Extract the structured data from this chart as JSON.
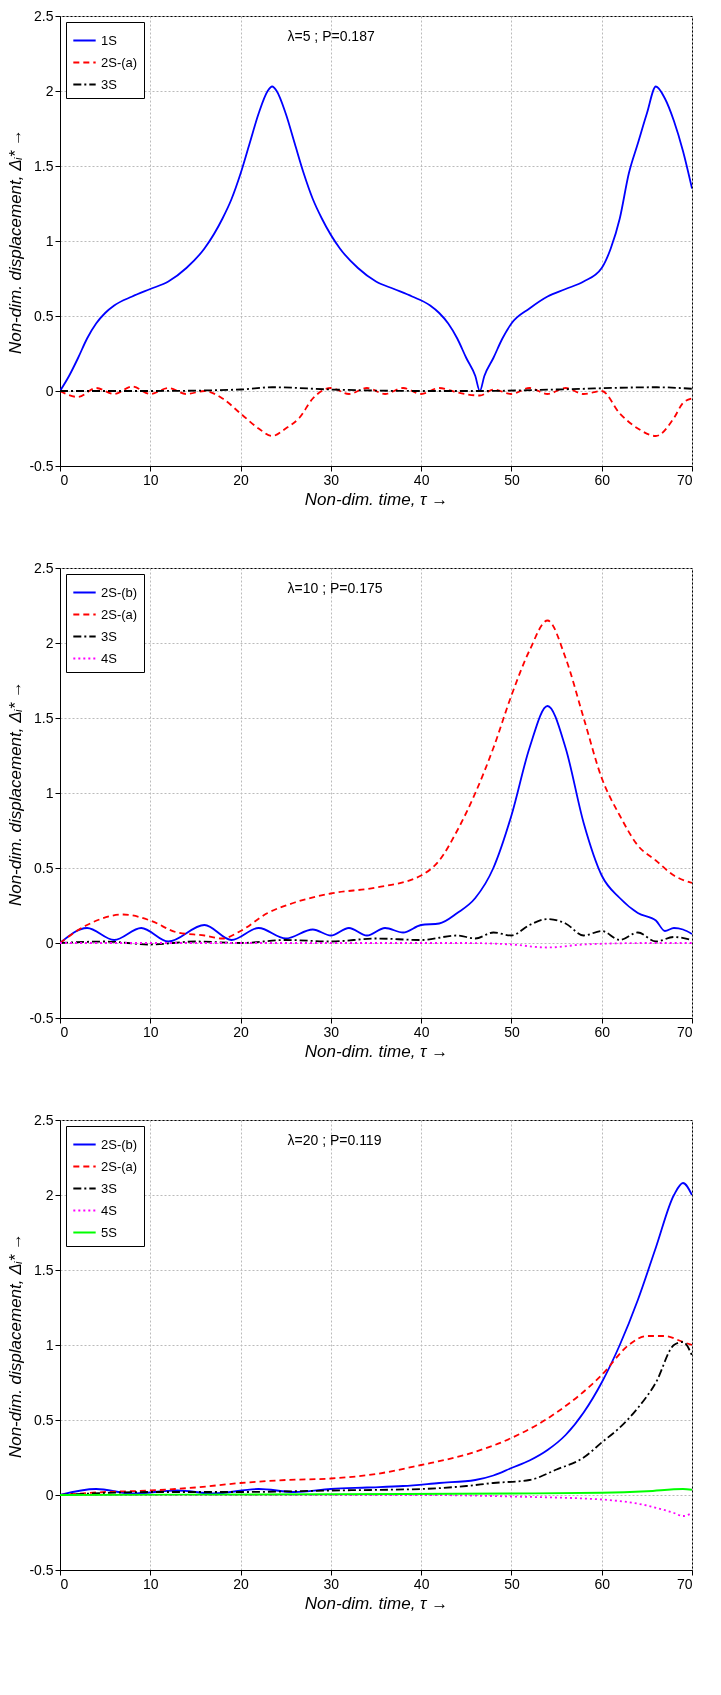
{
  "chart_data": [
    {
      "type": "line",
      "xlabel": "Non-dim. time, τ →",
      "ylabel": "Non-dim. displacement, Δᵢ* →",
      "annotations": [
        "λ=5 ;  P=0.187"
      ],
      "xlim": [
        0,
        70
      ],
      "xticks": [
        0,
        10,
        20,
        30,
        40,
        50,
        60,
        70
      ],
      "ylim": [
        -0.5,
        2.5
      ],
      "yticks": [
        -0.5,
        0,
        0.5,
        1,
        1.5,
        2,
        2.5
      ],
      "grid": true,
      "legend": "top left",
      "series": [
        {
          "name": "1S",
          "color": "#0000ff",
          "line_style": "solid",
          "x": [
            0,
            1,
            2,
            3,
            4,
            5,
            6,
            8,
            10,
            12,
            14,
            16,
            18,
            19,
            20,
            21,
            22,
            23,
            23.5,
            24,
            25,
            26,
            27,
            28,
            29,
            31,
            33,
            35,
            37,
            39,
            41,
            42,
            43,
            44,
            45,
            46,
            46.5,
            47,
            48,
            49,
            50,
            52,
            54,
            56,
            58,
            60,
            61,
            62,
            63,
            64,
            65,
            66,
            67,
            68,
            69,
            70
          ],
          "values": [
            0,
            0.1,
            0.22,
            0.35,
            0.45,
            0.52,
            0.57,
            0.63,
            0.68,
            0.73,
            0.82,
            0.95,
            1.15,
            1.28,
            1.45,
            1.65,
            1.85,
            2.0,
            2.03,
            2.0,
            1.85,
            1.65,
            1.45,
            1.28,
            1.15,
            0.95,
            0.82,
            0.73,
            0.68,
            0.63,
            0.57,
            0.52,
            0.45,
            0.35,
            0.22,
            0.1,
            0,
            0.1,
            0.22,
            0.35,
            0.45,
            0.55,
            0.63,
            0.68,
            0.73,
            0.82,
            0.95,
            1.15,
            1.45,
            1.65,
            1.85,
            2.03,
            1.95,
            1.8,
            1.6,
            1.35
          ]
        },
        {
          "name": "2S-(a)",
          "color": "#ff0000",
          "line_style": "dashed",
          "x": [
            0,
            2,
            4,
            6,
            8,
            10,
            12,
            14,
            16,
            18,
            20,
            22,
            23.5,
            25,
            26.5,
            28,
            30,
            32,
            34,
            36,
            38,
            40,
            42,
            44,
            46.5,
            48,
            50,
            52,
            54,
            56,
            58,
            60,
            62,
            64,
            66,
            68,
            69,
            70
          ],
          "values": [
            0,
            -0.04,
            0.02,
            -0.02,
            0.03,
            -0.02,
            0.02,
            -0.02,
            0,
            -0.05,
            -0.15,
            -0.25,
            -0.3,
            -0.25,
            -0.18,
            -0.05,
            0.02,
            -0.02,
            0.02,
            -0.02,
            0.02,
            -0.02,
            0.02,
            -0.01,
            -0.03,
            0.01,
            -0.02,
            0.02,
            -0.02,
            0.02,
            -0.02,
            0,
            -0.15,
            -0.25,
            -0.3,
            -0.18,
            -0.08,
            -0.05
          ]
        },
        {
          "name": "3S",
          "color": "#000000",
          "line_style": "dashdot",
          "x": [
            0,
            10,
            20,
            23.5,
            30,
            40,
            46.5,
            55,
            66,
            70
          ],
          "values": [
            0,
            0,
            0.01,
            0.025,
            0.01,
            0,
            0,
            0.01,
            0.025,
            0.015
          ]
        }
      ]
    },
    {
      "type": "line",
      "xlabel": "Non-dim. time, τ →",
      "ylabel": "Non-dim. displacement, Δᵢ* →",
      "annotations": [
        "λ=10 ;  P=0.175"
      ],
      "xlim": [
        0,
        70
      ],
      "xticks": [
        0,
        10,
        20,
        30,
        40,
        50,
        60,
        70
      ],
      "ylim": [
        -0.5,
        2.5
      ],
      "yticks": [
        -0.5,
        0,
        0.5,
        1,
        1.5,
        2,
        2.5
      ],
      "grid": true,
      "legend": "top left",
      "series": [
        {
          "name": "2S-(b)",
          "color": "#0000ff",
          "line_style": "solid",
          "x": [
            0,
            3,
            6,
            9,
            12,
            16,
            19,
            22,
            25,
            28,
            30,
            32,
            34,
            36,
            38,
            40,
            42,
            44,
            46,
            48,
            50,
            52,
            54,
            56,
            58,
            60,
            62,
            64,
            66,
            67,
            68,
            69,
            70
          ],
          "values": [
            0,
            0.1,
            0.02,
            0.1,
            0.01,
            0.12,
            0.02,
            0.1,
            0.03,
            0.09,
            0.05,
            0.1,
            0.05,
            0.1,
            0.07,
            0.12,
            0.13,
            0.2,
            0.3,
            0.5,
            0.85,
            1.3,
            1.58,
            1.3,
            0.8,
            0.45,
            0.3,
            0.2,
            0.15,
            0.08,
            0.1,
            0.09,
            0.06
          ]
        },
        {
          "name": "2S-(a)",
          "color": "#ff0000",
          "line_style": "dashed",
          "x": [
            0,
            3,
            7,
            10,
            13,
            16,
            18,
            20,
            23,
            26,
            30,
            35,
            40,
            42,
            44,
            46,
            48,
            50,
            52,
            54,
            56,
            58,
            60,
            62,
            64,
            66,
            68,
            70
          ],
          "values": [
            0,
            0.12,
            0.19,
            0.15,
            0.07,
            0.05,
            0.03,
            0.08,
            0.2,
            0.27,
            0.33,
            0.37,
            0.45,
            0.55,
            0.75,
            1.0,
            1.3,
            1.65,
            1.95,
            2.15,
            1.9,
            1.5,
            1.1,
            0.85,
            0.65,
            0.55,
            0.45,
            0.4
          ]
        },
        {
          "name": "3S",
          "color": "#000000",
          "line_style": "dashdot",
          "x": [
            0,
            5,
            10,
            15,
            20,
            25,
            30,
            35,
            40,
            44,
            46,
            48,
            50,
            52,
            54,
            56,
            58,
            60,
            62,
            64,
            66,
            68,
            70
          ],
          "values": [
            0,
            0.01,
            -0.01,
            0.01,
            0.0,
            0.02,
            0.01,
            0.03,
            0.02,
            0.05,
            0.03,
            0.07,
            0.05,
            0.12,
            0.16,
            0.13,
            0.05,
            0.08,
            0.02,
            0.07,
            0.01,
            0.04,
            0.02
          ]
        },
        {
          "name": "4S",
          "color": "#ff00ff",
          "line_style": "dotted",
          "x": [
            0,
            45,
            50,
            54,
            58,
            65,
            70
          ],
          "values": [
            0,
            0,
            -0.01,
            -0.03,
            -0.01,
            0,
            0
          ]
        }
      ]
    },
    {
      "type": "line",
      "xlabel": "Non-dim. time, τ →",
      "ylabel": "Non-dim. displacement, Δᵢ* →",
      "annotations": [
        "λ=20 ;  P=0.119"
      ],
      "xlim": [
        0,
        70
      ],
      "xticks": [
        0,
        10,
        20,
        30,
        40,
        50,
        60,
        70
      ],
      "ylim": [
        -0.5,
        2.5
      ],
      "yticks": [
        -0.5,
        0,
        0.5,
        1,
        1.5,
        2,
        2.5
      ],
      "grid": true,
      "legend": "top left",
      "series": [
        {
          "name": "2S-(b)",
          "color": "#0000ff",
          "line_style": "solid",
          "x": [
            0,
            4,
            8,
            13,
            17,
            22,
            26,
            30,
            34,
            38,
            42,
            46,
            48,
            50,
            52,
            54,
            56,
            58,
            60,
            62,
            64,
            66,
            68,
            69,
            70
          ],
          "values": [
            0,
            0.04,
            0.01,
            0.03,
            0.01,
            0.04,
            0.02,
            0.04,
            0.05,
            0.06,
            0.08,
            0.1,
            0.13,
            0.18,
            0.23,
            0.3,
            0.4,
            0.55,
            0.75,
            1.0,
            1.3,
            1.65,
            2.0,
            2.08,
            2.0
          ]
        },
        {
          "name": "2S-(a)",
          "color": "#ff0000",
          "line_style": "dashed",
          "x": [
            0,
            5,
            10,
            15,
            20,
            25,
            30,
            35,
            40,
            45,
            50,
            55,
            60,
            63,
            65,
            67,
            69,
            70
          ],
          "values": [
            0,
            0.02,
            0.03,
            0.05,
            0.08,
            0.1,
            0.11,
            0.14,
            0.2,
            0.27,
            0.38,
            0.55,
            0.8,
            1.0,
            1.06,
            1.06,
            1.02,
            1.0
          ]
        },
        {
          "name": "3S",
          "color": "#000000",
          "line_style": "dashdot",
          "x": [
            0,
            10,
            20,
            30,
            40,
            45,
            48,
            52,
            55,
            58,
            60,
            62,
            64,
            66,
            68,
            69,
            70
          ],
          "values": [
            0,
            0.02,
            0.02,
            0.03,
            0.04,
            0.06,
            0.08,
            0.1,
            0.17,
            0.25,
            0.35,
            0.45,
            0.58,
            0.75,
            1.0,
            1.02,
            0.93
          ]
        },
        {
          "name": "4S",
          "color": "#ff00ff",
          "line_style": "dotted",
          "x": [
            0,
            40,
            50,
            60,
            65,
            68,
            69,
            70
          ],
          "values": [
            0,
            0,
            -0.01,
            -0.03,
            -0.07,
            -0.12,
            -0.14,
            -0.12
          ]
        },
        {
          "name": "5S",
          "color": "#00ff00",
          "line_style": "solid",
          "x": [
            0,
            30,
            50,
            60,
            65,
            69,
            70
          ],
          "values": [
            0,
            0.005,
            0.01,
            0.015,
            0.025,
            0.04,
            0.035
          ]
        }
      ]
    }
  ]
}
